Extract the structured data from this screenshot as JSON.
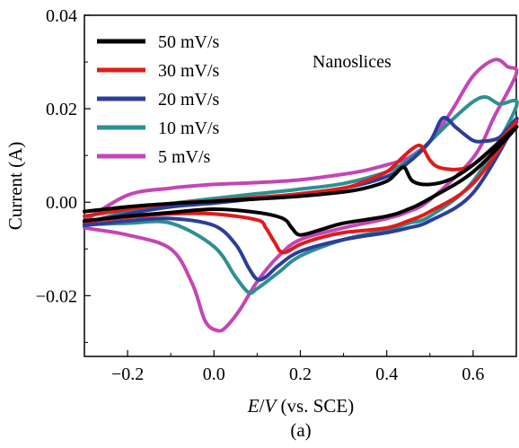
{
  "caption": "(a)",
  "chart_data": {
    "type": "line",
    "title": "",
    "annotation": "Nanoslices",
    "xlabel": "E/V (vs. SCE)",
    "xlabel_parts": {
      "e": "E",
      "slash": "/",
      "v": "V",
      "rest": " (vs. SCE)"
    },
    "ylabel": "Current (A)",
    "xlim": [
      -0.3,
      0.7
    ],
    "ylim": [
      -0.033,
      0.04
    ],
    "xticks": [
      -0.2,
      0.0,
      0.2,
      0.4,
      0.6
    ],
    "xtick_labels": [
      "−0.2",
      "0.0",
      "0.2",
      "0.4",
      "0.6"
    ],
    "yticks": [
      -0.02,
      0.0,
      0.02,
      0.04
    ],
    "ytick_labels": [
      "−0.02",
      "0.00",
      "0.02",
      "0.04"
    ],
    "grid": false,
    "legend_position": "top-left",
    "series": [
      {
        "name": "50 mV/s",
        "color": "#000000",
        "x": [
          -0.3,
          -0.2,
          -0.1,
          0.0,
          0.1,
          0.2,
          0.3,
          0.35,
          0.4,
          0.42,
          0.44,
          0.46,
          0.5,
          0.55,
          0.6,
          0.65,
          0.7,
          0.6,
          0.5,
          0.45,
          0.4,
          0.3,
          0.25,
          0.2,
          0.18,
          0.16,
          0.1,
          0.0,
          -0.1,
          -0.2,
          -0.3
        ],
        "y": [
          -0.002,
          -0.001,
          -0.0003,
          0.0002,
          0.0007,
          0.0013,
          0.0022,
          0.003,
          0.0045,
          0.006,
          0.0075,
          0.0045,
          0.0038,
          0.005,
          0.008,
          0.012,
          0.016,
          0.0065,
          0.0008,
          -0.0015,
          -0.003,
          -0.0045,
          -0.0058,
          -0.007,
          -0.0055,
          -0.0035,
          -0.0022,
          -0.0015,
          -0.0022,
          -0.003,
          -0.004
        ]
      },
      {
        "name": "30 mV/s",
        "color": "#e01b1b",
        "x": [
          -0.3,
          -0.2,
          -0.1,
          0.0,
          0.1,
          0.2,
          0.3,
          0.35,
          0.4,
          0.43,
          0.46,
          0.48,
          0.5,
          0.52,
          0.56,
          0.6,
          0.65,
          0.7,
          0.6,
          0.5,
          0.45,
          0.4,
          0.3,
          0.25,
          0.2,
          0.16,
          0.14,
          0.12,
          0.1,
          0.0,
          -0.1,
          -0.2,
          -0.3
        ],
        "y": [
          -0.003,
          -0.0015,
          -0.0003,
          0.0003,
          0.001,
          0.0018,
          0.003,
          0.0045,
          0.0065,
          0.009,
          0.0115,
          0.012,
          0.009,
          0.0075,
          0.007,
          0.008,
          0.012,
          0.017,
          0.004,
          -0.002,
          -0.004,
          -0.0055,
          -0.0065,
          -0.0075,
          -0.009,
          -0.0108,
          -0.0085,
          -0.0055,
          -0.0038,
          -0.0025,
          -0.0025,
          -0.0032,
          -0.0042
        ]
      },
      {
        "name": "20 mV/s",
        "color": "#2b3e9a",
        "x": [
          -0.3,
          -0.2,
          -0.1,
          0.0,
          0.1,
          0.2,
          0.3,
          0.4,
          0.45,
          0.5,
          0.53,
          0.56,
          0.58,
          0.6,
          0.62,
          0.66,
          0.7,
          0.6,
          0.5,
          0.45,
          0.4,
          0.3,
          0.2,
          0.15,
          0.12,
          0.1,
          0.08,
          0.05,
          0.0,
          -0.1,
          -0.2,
          -0.3
        ],
        "y": [
          -0.0045,
          -0.0025,
          -0.001,
          -0.0002,
          0.0008,
          0.0018,
          0.003,
          0.0055,
          0.0085,
          0.013,
          0.018,
          0.016,
          0.0145,
          0.0132,
          0.013,
          0.0138,
          0.0175,
          0.002,
          -0.004,
          -0.0055,
          -0.0065,
          -0.008,
          -0.0105,
          -0.0135,
          -0.016,
          -0.0165,
          -0.014,
          -0.009,
          -0.005,
          -0.0035,
          -0.004,
          -0.005
        ]
      },
      {
        "name": "10 mV/s",
        "color": "#2f8f8f",
        "x": [
          -0.3,
          -0.2,
          -0.1,
          0.0,
          0.1,
          0.2,
          0.3,
          0.4,
          0.45,
          0.5,
          0.55,
          0.6,
          0.63,
          0.66,
          0.7,
          0.6,
          0.5,
          0.45,
          0.4,
          0.3,
          0.2,
          0.15,
          0.1,
          0.08,
          0.05,
          0.0,
          -0.1,
          -0.2,
          -0.3
        ],
        "y": [
          -0.0045,
          -0.002,
          -0.0003,
          0.0008,
          0.0018,
          0.0028,
          0.004,
          0.0065,
          0.009,
          0.013,
          0.0175,
          0.0215,
          0.0225,
          0.021,
          0.0205,
          0.0045,
          -0.003,
          -0.0045,
          -0.006,
          -0.008,
          -0.0115,
          -0.015,
          -0.0185,
          -0.0193,
          -0.016,
          -0.0095,
          -0.0045,
          -0.0045,
          -0.0048
        ]
      },
      {
        "name": "5 mV/s",
        "color": "#c346b4",
        "x": [
          -0.3,
          -0.2,
          -0.1,
          0.0,
          0.1,
          0.2,
          0.3,
          0.35,
          0.4,
          0.45,
          0.5,
          0.55,
          0.6,
          0.65,
          0.68,
          0.7,
          0.65,
          0.6,
          0.5,
          0.45,
          0.4,
          0.3,
          0.2,
          0.15,
          0.1,
          0.06,
          0.03,
          0.01,
          -0.02,
          -0.05,
          -0.1,
          -0.2,
          -0.3
        ],
        "y": [
          -0.004,
          0.0015,
          0.003,
          0.0038,
          0.0042,
          0.0048,
          0.006,
          0.0068,
          0.008,
          0.0095,
          0.013,
          0.0195,
          0.027,
          0.0305,
          0.029,
          0.0275,
          0.0185,
          0.0095,
          0.0005,
          -0.002,
          -0.0035,
          -0.0055,
          -0.008,
          -0.0115,
          -0.017,
          -0.023,
          -0.0265,
          -0.0275,
          -0.0255,
          -0.0175,
          -0.01,
          -0.007,
          -0.0055
        ]
      }
    ]
  }
}
